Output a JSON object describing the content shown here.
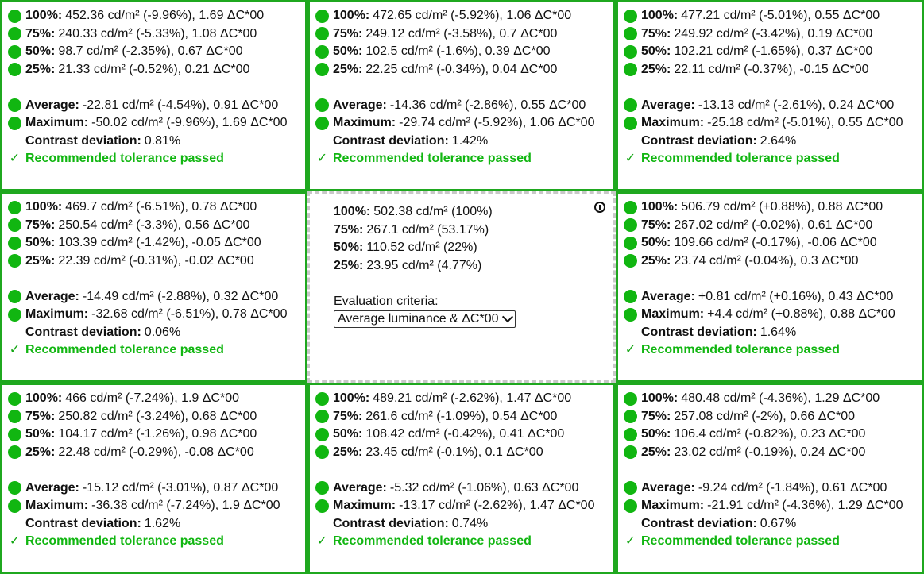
{
  "cells": [
    {
      "lines": [
        {
          "label": "100%:",
          "value": "452.36 cd/m² (-9.96%), 1.69 ΔC*00"
        },
        {
          "label": "75%:",
          "value": "240.33 cd/m² (-5.33%), 1.08 ΔC*00"
        },
        {
          "label": "50%:",
          "value": "98.7 cd/m² (-2.35%), 0.67 ΔC*00"
        },
        {
          "label": "25%:",
          "value": "21.33 cd/m² (-0.52%), 0.21 ΔC*00"
        }
      ],
      "average": {
        "label": "Average:",
        "value": "-22.81 cd/m² (-4.54%), 0.91 ΔC*00"
      },
      "maximum": {
        "label": "Maximum:",
        "value": "-50.02 cd/m² (-9.96%), 1.69 ΔC*00"
      },
      "contrast": {
        "label": "Contrast deviation:",
        "value": "0.81%"
      },
      "status": "Recommended tolerance passed"
    },
    {
      "lines": [
        {
          "label": "100%:",
          "value": "472.65 cd/m² (-5.92%), 1.06 ΔC*00"
        },
        {
          "label": "75%:",
          "value": "249.12 cd/m² (-3.58%), 0.7 ΔC*00"
        },
        {
          "label": "50%:",
          "value": "102.5 cd/m² (-1.6%), 0.39 ΔC*00"
        },
        {
          "label": "25%:",
          "value": "22.25 cd/m² (-0.34%), 0.04 ΔC*00"
        }
      ],
      "average": {
        "label": "Average:",
        "value": "-14.36 cd/m² (-2.86%), 0.55 ΔC*00"
      },
      "maximum": {
        "label": "Maximum:",
        "value": "-29.74 cd/m² (-5.92%), 1.06 ΔC*00"
      },
      "contrast": {
        "label": "Contrast deviation:",
        "value": "1.42%"
      },
      "status": "Recommended tolerance passed"
    },
    {
      "lines": [
        {
          "label": "100%:",
          "value": "477.21 cd/m² (-5.01%), 0.55 ΔC*00"
        },
        {
          "label": "75%:",
          "value": "249.92 cd/m² (-3.42%), 0.19 ΔC*00"
        },
        {
          "label": "50%:",
          "value": "102.21 cd/m² (-1.65%), 0.37 ΔC*00"
        },
        {
          "label": "25%:",
          "value": "22.11 cd/m² (-0.37%), -0.15 ΔC*00"
        }
      ],
      "average": {
        "label": "Average:",
        "value": "-13.13 cd/m² (-2.61%), 0.24 ΔC*00"
      },
      "maximum": {
        "label": "Maximum:",
        "value": "-25.18 cd/m² (-5.01%), 0.55 ΔC*00"
      },
      "contrast": {
        "label": "Contrast deviation:",
        "value": "2.64%"
      },
      "status": "Recommended tolerance passed"
    },
    {
      "lines": [
        {
          "label": "100%:",
          "value": "469.7 cd/m² (-6.51%), 0.78 ΔC*00"
        },
        {
          "label": "75%:",
          "value": "250.54 cd/m² (-3.3%), 0.56 ΔC*00"
        },
        {
          "label": "50%:",
          "value": "103.39 cd/m² (-1.42%), -0.05 ΔC*00"
        },
        {
          "label": "25%:",
          "value": "22.39 cd/m² (-0.31%), -0.02 ΔC*00"
        }
      ],
      "average": {
        "label": "Average:",
        "value": "-14.49 cd/m² (-2.88%), 0.32 ΔC*00"
      },
      "maximum": {
        "label": "Maximum:",
        "value": "-32.68 cd/m² (-6.51%), 0.78 ΔC*00"
      },
      "contrast": {
        "label": "Contrast deviation:",
        "value": "0.06%"
      },
      "status": "Recommended tolerance passed"
    },
    {
      "center": true,
      "lines": [
        {
          "label": "100%:",
          "value": "502.38 cd/m² (100%)"
        },
        {
          "label": "75%:",
          "value": "267.1 cd/m² (53.17%)"
        },
        {
          "label": "50%:",
          "value": "110.52 cd/m² (22%)"
        },
        {
          "label": "25%:",
          "value": "23.95 cd/m² (4.77%)"
        }
      ],
      "criteria_label": "Evaluation criteria:",
      "criteria_selected": "Average luminance & ΔC*00"
    },
    {
      "lines": [
        {
          "label": "100%:",
          "value": "506.79 cd/m² (+0.88%), 0.88 ΔC*00"
        },
        {
          "label": "75%:",
          "value": "267.02 cd/m² (-0.02%), 0.61 ΔC*00"
        },
        {
          "label": "50%:",
          "value": "109.66 cd/m² (-0.17%), -0.06 ΔC*00"
        },
        {
          "label": "25%:",
          "value": "23.74 cd/m² (-0.04%), 0.3 ΔC*00"
        }
      ],
      "average": {
        "label": "Average:",
        "value": "+0.81 cd/m² (+0.16%), 0.43 ΔC*00"
      },
      "maximum": {
        "label": "Maximum:",
        "value": "+4.4 cd/m² (+0.88%), 0.88 ΔC*00"
      },
      "contrast": {
        "label": "Contrast deviation:",
        "value": "1.64%"
      },
      "status": "Recommended tolerance passed"
    },
    {
      "lines": [
        {
          "label": "100%:",
          "value": "466 cd/m² (-7.24%), 1.9 ΔC*00"
        },
        {
          "label": "75%:",
          "value": "250.82 cd/m² (-3.24%), 0.68 ΔC*00"
        },
        {
          "label": "50%:",
          "value": "104.17 cd/m² (-1.26%), 0.98 ΔC*00"
        },
        {
          "label": "25%:",
          "value": "22.48 cd/m² (-0.29%), -0.08 ΔC*00"
        }
      ],
      "average": {
        "label": "Average:",
        "value": "-15.12 cd/m² (-3.01%), 0.87 ΔC*00"
      },
      "maximum": {
        "label": "Maximum:",
        "value": "-36.38 cd/m² (-7.24%), 1.9 ΔC*00"
      },
      "contrast": {
        "label": "Contrast deviation:",
        "value": "1.62%"
      },
      "status": "Recommended tolerance passed"
    },
    {
      "lines": [
        {
          "label": "100%:",
          "value": "489.21 cd/m² (-2.62%), 1.47 ΔC*00"
        },
        {
          "label": "75%:",
          "value": "261.6 cd/m² (-1.09%), 0.54 ΔC*00"
        },
        {
          "label": "50%:",
          "value": "108.42 cd/m² (-0.42%), 0.41 ΔC*00"
        },
        {
          "label": "25%:",
          "value": "23.45 cd/m² (-0.1%), 0.1 ΔC*00"
        }
      ],
      "average": {
        "label": "Average:",
        "value": "-5.32 cd/m² (-1.06%), 0.63 ΔC*00"
      },
      "maximum": {
        "label": "Maximum:",
        "value": "-13.17 cd/m² (-2.62%), 1.47 ΔC*00"
      },
      "contrast": {
        "label": "Contrast deviation:",
        "value": "0.74%"
      },
      "status": "Recommended tolerance passed"
    },
    {
      "lines": [
        {
          "label": "100%:",
          "value": "480.48 cd/m² (-4.36%), 1.29 ΔC*00"
        },
        {
          "label": "75%:",
          "value": "257.08 cd/m² (-2%), 0.66 ΔC*00"
        },
        {
          "label": "50%:",
          "value": "106.4 cd/m² (-0.82%), 0.23 ΔC*00"
        },
        {
          "label": "25%:",
          "value": "23.02 cd/m² (-0.19%), 0.24 ΔC*00"
        }
      ],
      "average": {
        "label": "Average:",
        "value": "-9.24 cd/m² (-1.84%), 0.61 ΔC*00"
      },
      "maximum": {
        "label": "Maximum:",
        "value": "-21.91 cd/m² (-4.36%), 1.29 ΔC*00"
      },
      "contrast": {
        "label": "Contrast deviation:",
        "value": "0.67%"
      },
      "status": "Recommended tolerance passed"
    }
  ],
  "colors": {
    "pass": "#11b611",
    "border": "#1fa81f",
    "center_border": "#c8c8c8"
  },
  "icons": {
    "status_dot": "green-dot-icon",
    "check": "check-icon",
    "info": "info-icon"
  }
}
